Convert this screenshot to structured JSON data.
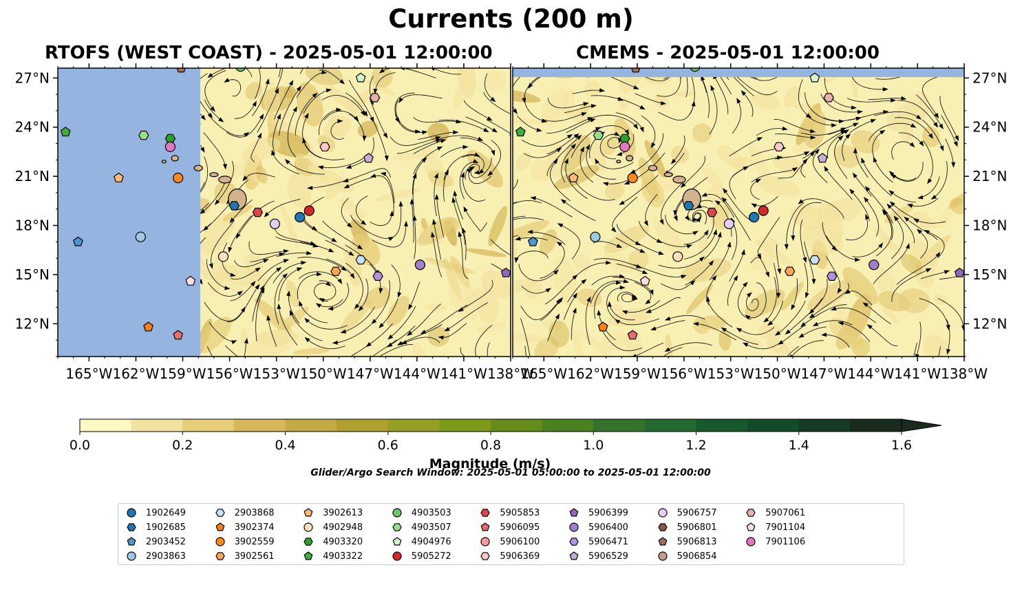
{
  "figure": {
    "title": "Currents (200 m)",
    "search_window": "Glider/Argo Search Window: 2025-05-01 05:00:00 to 2025-05-01 12:00:00"
  },
  "panels": [
    {
      "title": "RTOFS (WEST COAST) - 2025-05-01 12:00:00",
      "model": "RTOFS (WEST COAST)",
      "valid_time": "2025-05-01 12:00:00",
      "no_data_west_of_lon": -157.3
    },
    {
      "title": "CMEMS - 2025-05-01 12:00:00",
      "model": "CMEMS",
      "valid_time": "2025-05-01 12:00:00",
      "no_data_north_of_lat": 27.0
    }
  ],
  "map": {
    "lon_range": [
      -167,
      -138
    ],
    "lat_range": [
      10,
      27.6
    ],
    "lon_ticks": [
      "165°W",
      "162°W",
      "159°W",
      "156°W",
      "153°W",
      "150°W",
      "147°W",
      "144°W",
      "141°W",
      "138°W"
    ],
    "lon_tick_values": [
      -165,
      -162,
      -159,
      -156,
      -153,
      -150,
      -147,
      -144,
      -141,
      -138
    ],
    "left_panel_last_tick_label": "138°W",
    "lat_ticks": [
      "12°N",
      "15°N",
      "18°N",
      "21°N",
      "24°N",
      "27°N"
    ],
    "lat_tick_values": [
      12,
      15,
      18,
      21,
      24,
      27
    ]
  },
  "colorbar": {
    "label": "Magnitude (m/s)",
    "ticks": [
      "0.0",
      "0.2",
      "0.4",
      "0.6",
      "0.8",
      "1.0",
      "1.2",
      "1.4",
      "1.6"
    ],
    "range": [
      0,
      1.6
    ],
    "extend": "max",
    "colors": [
      "#fef9c0",
      "#f3e3a0",
      "#e5cd7a",
      "#d6b85a",
      "#c4aa45",
      "#b0a030",
      "#979e24",
      "#7e9a1a",
      "#638d18",
      "#4a8020",
      "#33742a",
      "#226a2e",
      "#17592d",
      "#134a2a",
      "#143b24",
      "#192a1f"
    ]
  },
  "legend": {
    "items": [
      {
        "id": "1902649",
        "marker": "circle",
        "color": "#1f77b4"
      },
      {
        "id": "1902685",
        "marker": "hexagon",
        "color": "#1f77b4"
      },
      {
        "id": "2903452",
        "marker": "pentagon",
        "color": "#4d97d0"
      },
      {
        "id": "2903863",
        "marker": "circle",
        "color": "#9ecae1"
      },
      {
        "id": "2903868",
        "marker": "hexagon",
        "color": "#c6e2f5"
      },
      {
        "id": "3902374",
        "marker": "pentagon",
        "color": "#ff7f0e"
      },
      {
        "id": "3902559",
        "marker": "circle",
        "color": "#ff8c1a"
      },
      {
        "id": "3902561",
        "marker": "hexagon",
        "color": "#ffa54f"
      },
      {
        "id": "3902613",
        "marker": "pentagon",
        "color": "#ffbb78"
      },
      {
        "id": "4902948",
        "marker": "circle",
        "color": "#ffe0bd"
      },
      {
        "id": "4903320",
        "marker": "hexagon",
        "color": "#2ca02c"
      },
      {
        "id": "4903322",
        "marker": "pentagon",
        "color": "#3caf3c"
      },
      {
        "id": "4903503",
        "marker": "circle",
        "color": "#6cc860"
      },
      {
        "id": "4903507",
        "marker": "hexagon",
        "color": "#98df8a"
      },
      {
        "id": "4904976",
        "marker": "pentagon",
        "color": "#d4f5cb"
      },
      {
        "id": "5905272",
        "marker": "circle",
        "color": "#d62728"
      },
      {
        "id": "5905853",
        "marker": "hexagon",
        "color": "#e0434a"
      },
      {
        "id": "5906095",
        "marker": "pentagon",
        "color": "#ea6b6b"
      },
      {
        "id": "5906100",
        "marker": "circle",
        "color": "#f49a9a"
      },
      {
        "id": "5906369",
        "marker": "hexagon",
        "color": "#ffc8c8"
      },
      {
        "id": "5906399",
        "marker": "pentagon",
        "color": "#9467bd"
      },
      {
        "id": "5906400",
        "marker": "circle",
        "color": "#a17fcd"
      },
      {
        "id": "5906471",
        "marker": "hexagon",
        "color": "#b491dc"
      },
      {
        "id": "5906529",
        "marker": "pentagon",
        "color": "#c5b0d5"
      },
      {
        "id": "5906757",
        "marker": "circle",
        "color": "#e3cef5"
      },
      {
        "id": "5906801",
        "marker": "hexagon",
        "color": "#8c564b"
      },
      {
        "id": "5906813",
        "marker": "pentagon",
        "color": "#a0705f"
      },
      {
        "id": "5906854",
        "marker": "circle",
        "color": "#c49c94"
      },
      {
        "id": "5907061",
        "marker": "hexagon",
        "color": "#e5b3a8"
      },
      {
        "id": "7901104",
        "marker": "pentagon",
        "color": "#fde0e4"
      },
      {
        "id": "7901106",
        "marker": "circle",
        "color": "#e377c2"
      }
    ]
  },
  "map_markers": [
    {
      "id": "4903322",
      "lon": -166.5,
      "lat": 23.7
    },
    {
      "id": "4903507",
      "lon": -161.5,
      "lat": 23.5
    },
    {
      "id": "4903320",
      "lon": -159.8,
      "lat": 23.3
    },
    {
      "id": "7901106",
      "lon": -159.8,
      "lat": 22.8
    },
    {
      "id": "3902613",
      "lon": -163.1,
      "lat": 20.9
    },
    {
      "id": "3902559",
      "lon": -159.3,
      "lat": 20.9
    },
    {
      "id": "2903452",
      "lon": -165.7,
      "lat": 17.0
    },
    {
      "id": "2903863",
      "lon": -161.7,
      "lat": 17.3
    },
    {
      "id": "3902374",
      "lon": -161.2,
      "lat": 11.8
    },
    {
      "id": "5906095",
      "lon": -159.3,
      "lat": 11.3
    },
    {
      "id": "7901104",
      "lon": -158.5,
      "lat": 14.6
    },
    {
      "id": "1902685",
      "lon": -155.7,
      "lat": 19.2
    },
    {
      "id": "5905853",
      "lon": -154.2,
      "lat": 18.8
    },
    {
      "id": "5906757",
      "lon": -153.1,
      "lat": 18.1
    },
    {
      "id": "1902649",
      "lon": -151.5,
      "lat": 18.5
    },
    {
      "id": "5905272",
      "lon": -150.9,
      "lat": 18.9
    },
    {
      "id": "4902948",
      "lon": -156.4,
      "lat": 16.1
    },
    {
      "id": "3902561",
      "lon": -149.2,
      "lat": 15.2
    },
    {
      "id": "2903868",
      "lon": -147.6,
      "lat": 15.9
    },
    {
      "id": "5906471",
      "lon": -146.5,
      "lat": 14.9
    },
    {
      "id": "5906400",
      "lon": -143.8,
      "lat": 15.6
    },
    {
      "id": "5906399",
      "lon": -138.3,
      "lat": 15.1
    },
    {
      "id": "5906369",
      "lon": -149.9,
      "lat": 22.8
    },
    {
      "id": "5906529",
      "lon": -147.1,
      "lat": 22.1
    },
    {
      "id": "4904976",
      "lon": -147.6,
      "lat": 27.0
    },
    {
      "id": "5907061",
      "lon": -146.7,
      "lat": 25.8
    },
    {
      "id": "5906813",
      "lon": -159.1,
      "lat": 27.6
    },
    {
      "id": "4903503",
      "lon": -155.3,
      "lat": 27.7
    }
  ]
}
